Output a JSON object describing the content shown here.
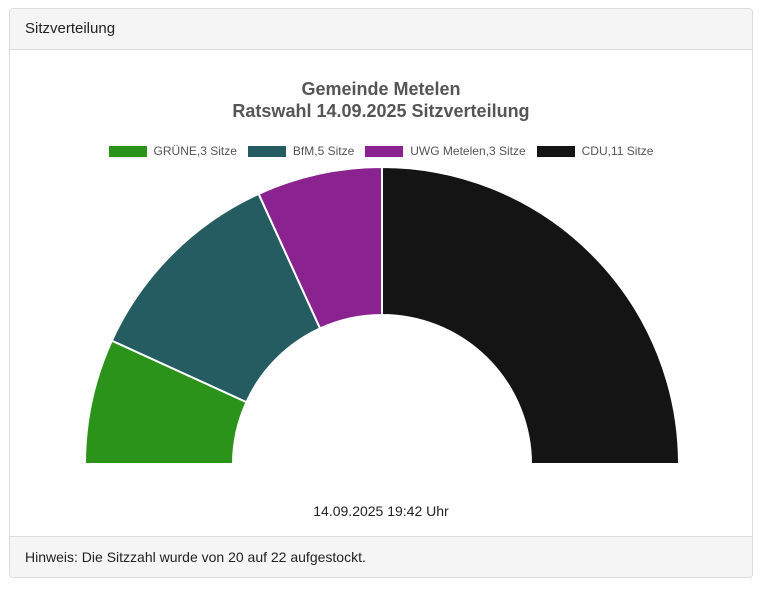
{
  "panel": {
    "header": "Sitzverteilung",
    "footer": "Hinweis: Die Sitzzahl wurde von 20 auf 22 aufgestockt."
  },
  "chart_data": {
    "type": "pie",
    "subtype": "half-donut (parliament seat distribution)",
    "title_line1": "Gemeinde Metelen",
    "title_line2": "Ratswahl 14.09.2025 Sitzverteilung",
    "categories": [
      "GRÜNE",
      "BfM",
      "UWG Metelen",
      "CDU"
    ],
    "values": [
      3,
      5,
      3,
      11
    ],
    "total": 22,
    "colors": [
      "#2c931a",
      "#245c61",
      "#8a238f",
      "#141414"
    ],
    "legend": [
      {
        "label": "GRÜNE,3 Sitze",
        "color": "#2c931a"
      },
      {
        "label": "BfM,5 Sitze",
        "color": "#245c61"
      },
      {
        "label": "UWG Metelen,3 Sitze",
        "color": "#8a238f"
      },
      {
        "label": "CDU,11 Sitze",
        "color": "#141414"
      }
    ],
    "legend_position": "top",
    "timestamp": "14.09.2025 19:42 Uhr"
  }
}
